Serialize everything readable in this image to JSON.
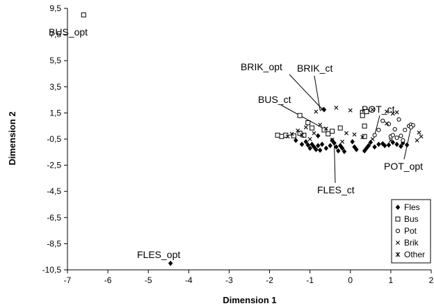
{
  "chart_data": {
    "type": "scatter",
    "title": "",
    "xlabel": "Dimension 1",
    "ylabel": "Dimension 2",
    "xlim": [
      -7,
      2
    ],
    "ylim": [
      -10.5,
      9.5
    ],
    "xticks": [
      "-7",
      "-6",
      "-5",
      "-4",
      "-3",
      "-2",
      "-1",
      "0",
      "1",
      "2"
    ],
    "yticks": [
      "9,5",
      "7,5",
      "5,5",
      "3,5",
      "1,5",
      "-0,5",
      "-2,5",
      "-4,5",
      "-6,5",
      "-8,5",
      "-10,5"
    ],
    "grid": false,
    "legend": "bottom-right",
    "series": [
      {
        "name": "Fles",
        "marker": "diamond-filled",
        "points": [
          [
            -4.45,
            -10.0
          ],
          [
            -1.35,
            -0.6
          ],
          [
            -1.2,
            -0.9
          ],
          [
            -1.1,
            -0.7
          ],
          [
            -1.05,
            -0.95
          ],
          [
            -1.0,
            -1.2
          ],
          [
            -0.95,
            -0.9
          ],
          [
            -0.9,
            -1.1
          ],
          [
            -0.85,
            -1.3
          ],
          [
            -0.8,
            -1.0
          ],
          [
            -0.75,
            -1.35
          ],
          [
            -0.7,
            -0.9
          ],
          [
            -0.6,
            -1.2
          ],
          [
            -0.5,
            -1.0
          ],
          [
            -0.45,
            -0.6
          ],
          [
            -0.4,
            -0.8
          ],
          [
            -0.35,
            -1.1
          ],
          [
            -0.3,
            -1.4
          ],
          [
            -0.25,
            -1.0
          ],
          [
            -0.2,
            -1.2
          ],
          [
            -0.15,
            -1.45
          ],
          [
            0.05,
            -0.7
          ],
          [
            0.1,
            -1.1
          ],
          [
            0.15,
            -1.3
          ],
          [
            0.35,
            -1.4
          ],
          [
            0.4,
            -1.2
          ],
          [
            0.45,
            -1.0
          ],
          [
            0.5,
            -0.75
          ],
          [
            0.6,
            -1.1
          ],
          [
            0.7,
            -0.9
          ],
          [
            0.8,
            -0.85
          ],
          [
            0.85,
            -1.0
          ],
          [
            0.95,
            -0.95
          ],
          [
            1.05,
            -0.75
          ],
          [
            1.15,
            -0.9
          ],
          [
            1.25,
            -1.05
          ],
          [
            1.3,
            -0.8
          ],
          [
            1.4,
            -0.95
          ],
          [
            -0.8,
            -0.25
          ],
          [
            -0.65,
            1.75
          ]
        ]
      },
      {
        "name": "Bus",
        "marker": "square-open",
        "points": [
          [
            -6.6,
            9.0
          ],
          [
            -1.8,
            -0.2
          ],
          [
            -1.7,
            -0.3
          ],
          [
            -1.6,
            -0.2
          ],
          [
            -1.4,
            -0.25
          ],
          [
            -1.25,
            1.3
          ],
          [
            -1.15,
            -0.2
          ],
          [
            -1.05,
            0.75
          ],
          [
            -0.65,
            0.2
          ],
          [
            -0.25,
            0.35
          ],
          [
            0.3,
            1.55
          ],
          [
            0.4,
            1.6
          ],
          [
            0.35,
            0.5
          ],
          [
            0.3,
            1.3
          ],
          [
            -0.55,
            -0.1
          ],
          [
            0.35,
            -0.3
          ],
          [
            -1.25,
            -0.05
          ],
          [
            -0.95,
            0.35
          ],
          [
            -0.45,
            0.1
          ]
        ]
      },
      {
        "name": "Pot",
        "marker": "circle-open",
        "points": [
          [
            0.6,
            -0.2
          ],
          [
            0.7,
            0.2
          ],
          [
            0.8,
            0.9
          ],
          [
            0.95,
            0.65
          ],
          [
            1.0,
            -0.3
          ],
          [
            1.05,
            -0.2
          ],
          [
            1.1,
            0.25
          ],
          [
            1.15,
            -0.4
          ],
          [
            1.2,
            1.0
          ],
          [
            1.25,
            -0.25
          ],
          [
            1.3,
            -0.6
          ],
          [
            1.35,
            0.2
          ],
          [
            1.45,
            0.5
          ],
          [
            1.5,
            0.6
          ],
          [
            1.55,
            0.55
          ],
          [
            1.5,
            0.4
          ]
        ]
      },
      {
        "name": "Brik",
        "marker": "x",
        "points": [
          [
            -0.85,
            1.6
          ],
          [
            -0.7,
            1.8
          ],
          [
            -1.55,
            -0.3
          ],
          [
            -1.2,
            -0.2
          ],
          [
            -1.1,
            0.4
          ],
          [
            -0.9,
            -0.05
          ],
          [
            -0.75,
            0.6
          ],
          [
            -0.6,
            0.3
          ],
          [
            -0.35,
            1.9
          ],
          [
            0.0,
            1.7
          ],
          [
            -0.1,
            -0.05
          ],
          [
            -0.2,
            -0.7
          ],
          [
            0.1,
            -0.15
          ],
          [
            0.55,
            1.75
          ],
          [
            0.9,
            1.6
          ],
          [
            1.05,
            1.45
          ],
          [
            1.15,
            1.55
          ],
          [
            0.9,
            0.7
          ],
          [
            1.7,
            0.0
          ],
          [
            1.75,
            -0.3
          ],
          [
            1.65,
            -0.6
          ],
          [
            -1.0,
            -0.5
          ],
          [
            -0.45,
            -0.55
          ],
          [
            0.3,
            -0.35
          ],
          [
            0.55,
            -0.5
          ],
          [
            1.0,
            -0.6
          ],
          [
            -1.45,
            -0.1
          ],
          [
            -1.3,
            0.15
          ]
        ]
      },
      {
        "name": "Other",
        "marker": "star",
        "points": []
      }
    ],
    "annotations": [
      {
        "text": "BUS_opt",
        "target": [
          -6.6,
          9.0
        ]
      },
      {
        "text": "FLES_opt",
        "target": [
          -4.45,
          -10.0
        ]
      },
      {
        "text": "BRIK_opt",
        "target": [
          -0.7,
          1.8
        ]
      },
      {
        "text": "BRIK_ct",
        "target": [
          -0.75,
          1.7
        ]
      },
      {
        "text": "BUS_ct",
        "target": [
          -0.6,
          0.2
        ]
      },
      {
        "text": "POT_ct",
        "target": [
          0.6,
          -0.2
        ]
      },
      {
        "text": "POT_opt",
        "target": [
          1.5,
          0.4
        ]
      },
      {
        "text": "FLES_ct",
        "target": [
          -0.4,
          -0.8
        ]
      }
    ]
  }
}
